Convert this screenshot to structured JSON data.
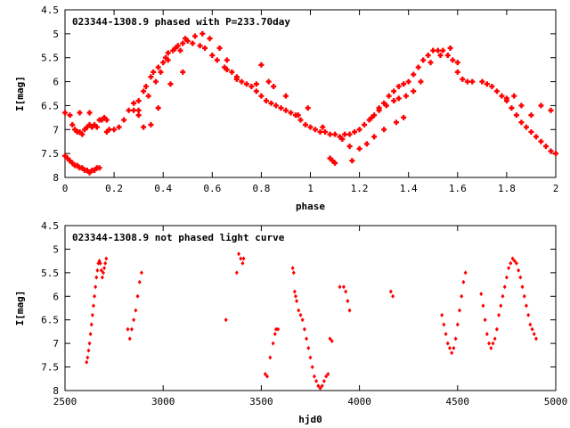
{
  "chart_data": [
    {
      "type": "scatter",
      "title": "023344-1308.9 phased with P=233.70day",
      "xlabel": "phase",
      "ylabel": "I[mag]",
      "xlim": [
        0,
        2
      ],
      "ylim": [
        4.5,
        8
      ],
      "y_inverted": true,
      "xticks": [
        "0",
        "0.2",
        "0.4",
        "0.6",
        "0.8",
        "1",
        "1.2",
        "1.4",
        "1.6",
        "1.8",
        "2"
      ],
      "yticks": [
        "4.5",
        "5",
        "5.5",
        "6",
        "6.5",
        "7",
        "7.5",
        "8"
      ],
      "marker_color": "#ff0000",
      "series": [
        {
          "x": [
            0.0,
            0.02,
            0.03,
            0.04,
            0.05,
            0.06,
            0.07,
            0.08,
            0.09,
            0.1,
            0.11,
            0.12,
            0.13,
            0.14,
            0.15,
            0.16,
            0.17,
            0.18,
            0.0,
            0.01,
            0.02,
            0.03,
            0.04,
            0.05,
            0.06,
            0.07,
            0.08,
            0.09,
            0.1,
            0.11,
            0.12,
            0.13,
            0.14,
            0.06,
            0.1,
            0.17,
            0.2,
            0.22,
            0.24,
            0.26,
            0.28,
            0.3,
            0.32,
            0.33,
            0.35,
            0.36,
            0.38,
            0.4,
            0.41,
            0.42,
            0.44,
            0.45,
            0.46,
            0.48,
            0.5,
            0.52,
            0.55,
            0.57,
            0.6,
            0.62,
            0.65,
            0.66,
            0.68,
            0.7,
            0.3,
            0.34,
            0.37,
            0.39,
            0.42,
            0.47,
            0.49,
            0.53,
            0.56,
            0.59,
            0.63,
            0.66,
            0.35,
            0.32,
            0.3,
            0.28,
            0.38,
            0.43,
            0.48,
            0.7,
            0.72,
            0.74,
            0.76,
            0.78,
            0.8,
            0.82,
            0.84,
            0.86,
            0.88,
            0.9,
            0.92,
            0.94,
            0.96,
            0.98,
            1.0,
            1.02,
            1.04,
            1.06,
            1.08,
            1.1,
            1.12,
            1.14,
            1.16,
            1.18,
            0.78,
            0.8,
            0.83,
            0.85,
            0.9,
            0.95,
            0.99,
            1.05,
            1.09,
            1.13,
            1.17,
            1.08,
            1.1,
            1.16,
            1.2,
            1.22,
            1.24,
            1.26,
            1.28,
            1.3,
            1.32,
            1.34,
            1.36,
            1.38,
            1.4,
            1.42,
            1.44,
            1.46,
            1.48,
            1.5,
            1.52,
            1.54,
            1.56,
            1.58,
            1.6,
            1.62,
            1.64,
            1.66,
            1.25,
            1.28,
            1.31,
            1.34,
            1.36,
            1.39,
            1.42,
            1.45,
            1.49,
            1.53,
            1.57,
            1.6,
            1.2,
            1.23,
            1.26,
            1.3,
            1.35,
            1.38,
            1.7,
            1.72,
            1.74,
            1.76,
            1.78,
            1.8,
            1.82,
            1.84,
            1.86,
            1.88,
            1.9,
            1.92,
            1.94,
            1.96,
            1.98,
            2.0,
            1.8,
            1.83,
            1.86,
            1.9,
            1.94,
            1.98
          ],
          "y": [
            6.65,
            6.7,
            6.9,
            7.0,
            7.05,
            7.05,
            7.1,
            7.0,
            6.95,
            6.9,
            6.95,
            6.9,
            6.95,
            6.8,
            6.8,
            6.75,
            6.8,
            7.0,
            7.55,
            7.6,
            7.65,
            7.7,
            7.75,
            7.75,
            7.8,
            7.8,
            7.85,
            7.85,
            7.9,
            7.85,
            7.85,
            7.8,
            7.8,
            6.65,
            6.65,
            7.05,
            7.0,
            6.95,
            6.8,
            6.6,
            6.45,
            6.4,
            6.2,
            6.1,
            5.9,
            5.8,
            5.7,
            5.6,
            5.5,
            5.4,
            5.35,
            5.3,
            5.25,
            5.2,
            5.15,
            5.2,
            5.25,
            5.3,
            5.45,
            5.55,
            5.7,
            5.75,
            5.8,
            5.9,
            6.6,
            6.3,
            6.0,
            5.8,
            5.55,
            5.35,
            5.1,
            5.05,
            5.0,
            5.1,
            5.3,
            5.55,
            6.9,
            6.95,
            6.7,
            6.6,
            6.55,
            6.05,
            5.8,
            5.95,
            6.0,
            6.05,
            6.1,
            6.2,
            6.3,
            6.4,
            6.45,
            6.5,
            6.55,
            6.6,
            6.65,
            6.7,
            6.8,
            6.9,
            6.95,
            7.0,
            7.05,
            7.05,
            7.1,
            7.1,
            7.15,
            7.1,
            7.1,
            7.05,
            6.05,
            5.65,
            6.0,
            6.1,
            6.3,
            6.7,
            6.55,
            6.95,
            7.65,
            7.2,
            7.65,
            7.6,
            7.7,
            7.35,
            7.0,
            6.9,
            6.8,
            6.7,
            6.55,
            6.45,
            6.3,
            6.2,
            6.1,
            6.05,
            6.0,
            5.85,
            5.7,
            5.55,
            5.45,
            5.35,
            5.35,
            5.35,
            5.45,
            5.55,
            5.8,
            5.95,
            6.0,
            6.0,
            6.75,
            6.6,
            6.5,
            6.4,
            6.35,
            6.3,
            6.2,
            6.0,
            5.6,
            5.45,
            5.3,
            5.6,
            7.4,
            7.3,
            7.15,
            7.0,
            6.85,
            6.75,
            6.0,
            6.05,
            6.1,
            6.2,
            6.3,
            6.4,
            6.55,
            6.7,
            6.85,
            6.95,
            7.05,
            7.15,
            7.25,
            7.35,
            7.45,
            7.5,
            6.35,
            6.3,
            6.5,
            6.7,
            6.5,
            6.6
          ]
        }
      ]
    },
    {
      "type": "scatter",
      "title": "023344-1308.9 not phased light curve",
      "xlabel": "hjd0",
      "ylabel": "I[mag]",
      "xlim": [
        2500,
        5000
      ],
      "ylim": [
        4.5,
        8
      ],
      "y_inverted": true,
      "xticks": [
        "2500",
        "3000",
        "3500",
        "4000",
        "4500",
        "5000"
      ],
      "yticks": [
        "4.5",
        "5",
        "5.5",
        "6",
        "6.5",
        "7",
        "7.5",
        "8"
      ],
      "marker_color": "#ff0000",
      "series": [
        {
          "x": [
            2610,
            2615,
            2620,
            2625,
            2630,
            2635,
            2640,
            2645,
            2650,
            2655,
            2660,
            2665,
            2670,
            2675,
            2680,
            2685,
            2690,
            2695,
            2700,
            2705,
            2710,
            2820,
            2830,
            2840,
            2850,
            2860,
            2870,
            2880,
            2890,
            3320,
            3375,
            3385,
            3395,
            3405,
            3410,
            3520,
            3530,
            3545,
            3560,
            3570,
            3575,
            3585,
            3660,
            3665,
            3670,
            3675,
            3680,
            3690,
            3700,
            3710,
            3720,
            3730,
            3740,
            3750,
            3760,
            3770,
            3780,
            3790,
            3800,
            3810,
            3820,
            3830,
            3840,
            3850,
            3860,
            3900,
            3920,
            3930,
            3940,
            3950,
            4160,
            4170,
            4420,
            4430,
            4440,
            4450,
            4460,
            4470,
            4480,
            4490,
            4500,
            4510,
            4520,
            4530,
            4540,
            4620,
            4630,
            4640,
            4650,
            4660,
            4670,
            4680,
            4690,
            4700,
            4710,
            4720,
            4730,
            4740,
            4750,
            4760,
            4770,
            4780,
            4790,
            4800,
            4810,
            4820,
            4830,
            4840,
            4850,
            4860,
            4870,
            4880,
            4890,
            4900
          ],
          "y": [
            7.4,
            7.3,
            7.15,
            7.0,
            6.8,
            6.6,
            6.4,
            6.2,
            6.0,
            5.8,
            5.6,
            5.45,
            5.3,
            5.25,
            5.3,
            5.45,
            5.6,
            5.5,
            5.4,
            5.3,
            5.2,
            6.7,
            6.9,
            6.7,
            6.5,
            6.3,
            6.0,
            5.7,
            5.5,
            6.5,
            5.5,
            5.1,
            5.2,
            5.3,
            5.2,
            7.65,
            7.7,
            7.3,
            7.0,
            6.8,
            6.7,
            6.7,
            5.4,
            5.5,
            5.9,
            6.0,
            6.1,
            6.3,
            6.4,
            6.5,
            6.7,
            6.9,
            7.1,
            7.3,
            7.5,
            7.7,
            7.8,
            7.9,
            7.95,
            7.9,
            7.8,
            7.7,
            7.65,
            6.9,
            6.95,
            5.8,
            5.8,
            5.9,
            6.1,
            6.3,
            5.9,
            6.0,
            6.4,
            6.6,
            6.8,
            7.0,
            7.1,
            7.2,
            7.1,
            6.9,
            6.6,
            6.3,
            6.0,
            5.7,
            5.5,
            5.95,
            6.2,
            6.5,
            6.8,
            7.0,
            7.1,
            7.0,
            6.9,
            6.7,
            6.4,
            6.2,
            6.0,
            5.8,
            5.6,
            5.4,
            5.3,
            5.2,
            5.25,
            5.3,
            5.45,
            5.6,
            5.8,
            6.0,
            6.2,
            6.4,
            6.6,
            6.7,
            6.8,
            6.9
          ]
        }
      ]
    }
  ]
}
